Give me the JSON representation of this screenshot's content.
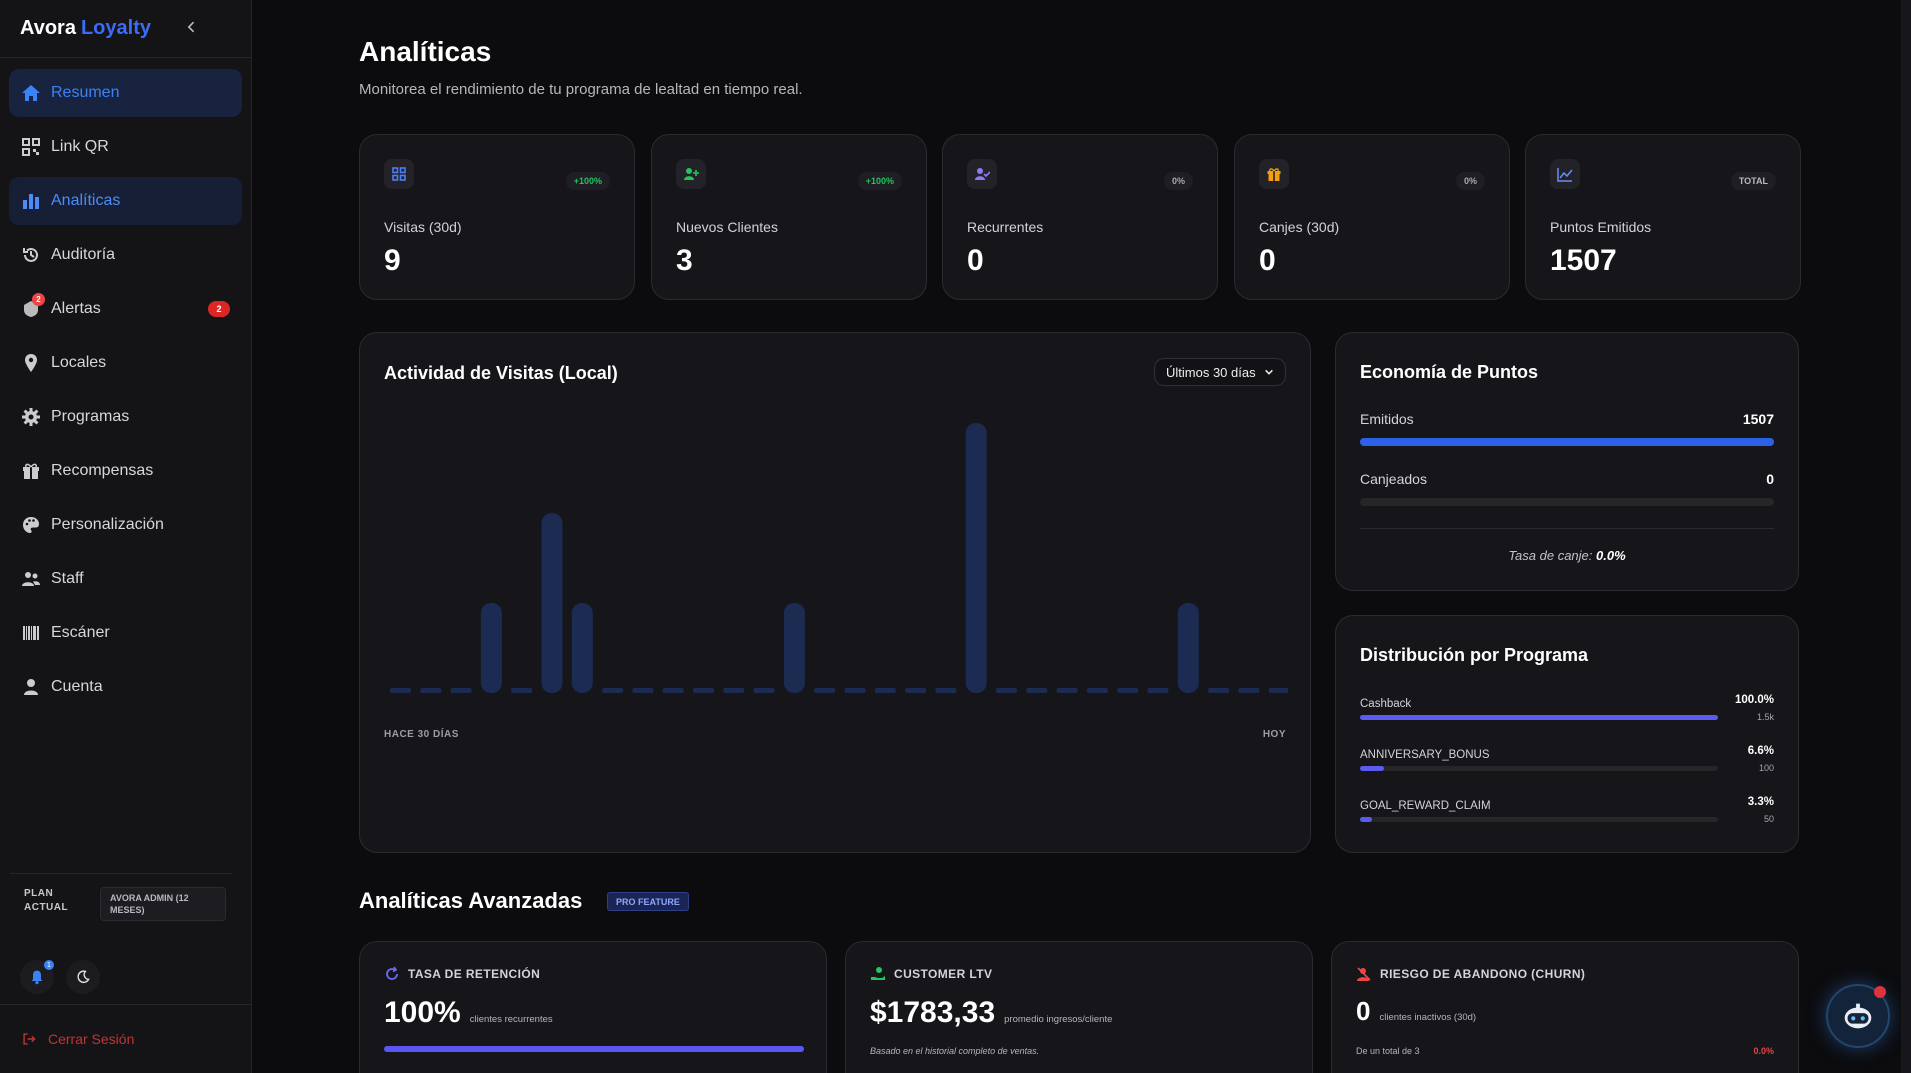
{
  "sidebar": {
    "brand_name": "Avora",
    "brand_accent": "Loyalty",
    "items": [
      {
        "label": "Resumen",
        "icon": "home-icon"
      },
      {
        "label": "Link QR",
        "icon": "qr-icon"
      },
      {
        "label": "Analíticas",
        "icon": "bar-chart-icon"
      },
      {
        "label": "Auditoría",
        "icon": "history-icon"
      },
      {
        "label": "Alertas",
        "icon": "alert-icon",
        "badge": "2",
        "icon_badge": "2"
      },
      {
        "label": "Locales",
        "icon": "location-pin-icon"
      },
      {
        "label": "Programas",
        "icon": "gear-icon"
      },
      {
        "label": "Recompensas",
        "icon": "gift-icon"
      },
      {
        "label": "Personalización",
        "icon": "palette-icon"
      },
      {
        "label": "Staff",
        "icon": "users-icon"
      },
      {
        "label": "Escáner",
        "icon": "barcode-icon"
      },
      {
        "label": "Cuenta",
        "icon": "user-icon"
      }
    ],
    "plan_label": "PLAN ACTUAL",
    "plan_value": "AVORA ADMIN (12 MESES)",
    "notifications_badge": "1",
    "logout_label": "Cerrar Sesión"
  },
  "header": {
    "title": "Analíticas",
    "subtitle": "Monitorea el rendimiento de tu programa de lealtad en tiempo real."
  },
  "stats": [
    {
      "label": "Visitas (30d)",
      "value": "9",
      "chip": "+100%",
      "icon": "grid-icon"
    },
    {
      "label": "Nuevos Clientes",
      "value": "3",
      "chip": "+100%",
      "icon": "user-plus-icon"
    },
    {
      "label": "Recurrentes",
      "value": "0",
      "chip": "0%",
      "icon": "user-check-icon"
    },
    {
      "label": "Canjes (30d)",
      "value": "0",
      "chip": "0%",
      "icon": "gift-icon"
    },
    {
      "label": "Puntos Emitidos",
      "value": "1507",
      "chip": "TOTAL",
      "icon": "trend-icon"
    }
  ],
  "activity": {
    "title": "Actividad de Visitas (Local)",
    "range": "Últimos 30 días",
    "start_label": "HACE 30 DÍAS",
    "end_label": "HOY"
  },
  "chart_data": {
    "type": "bar",
    "title": "Actividad de Visitas (Local)",
    "xlabel": "",
    "ylabel": "",
    "categories": [
      "HACE 30 DÍAS",
      "",
      "",
      "",
      "",
      "",
      "",
      "",
      "",
      "",
      "",
      "",
      "",
      "",
      "",
      "",
      "",
      "",
      "",
      "",
      "",
      "",
      "",
      "",
      "",
      "",
      "",
      "",
      "",
      "HOY"
    ],
    "values": [
      0,
      0,
      0,
      1,
      0,
      2,
      1,
      0,
      0,
      0,
      0,
      0,
      0,
      1,
      0,
      0,
      0,
      0,
      0,
      3,
      0,
      0,
      0,
      0,
      0,
      0,
      1,
      0,
      0,
      0
    ],
    "ylim": [
      0,
      3
    ]
  },
  "economy": {
    "title": "Economía de Puntos",
    "issued_label": "Emitidos",
    "issued_value": "1507",
    "issued_fill": 1.0,
    "redeemed_label": "Canjeados",
    "redeemed_value": "0",
    "redeemed_fill": 0.0,
    "rate_label": "Tasa de canje:",
    "rate_value": "0.0%"
  },
  "distribution": {
    "title": "Distribución por Programa",
    "rows": [
      {
        "name": "Cashback",
        "pct": "100.0%",
        "count": "1.5k",
        "fill": 1.0
      },
      {
        "name": "ANNIVERSARY_BONUS",
        "pct": "6.6%",
        "count": "100",
        "fill": 0.066
      },
      {
        "name": "GOAL_REWARD_CLAIM",
        "pct": "3.3%",
        "count": "50",
        "fill": 0.033
      }
    ]
  },
  "advanced": {
    "title": "Analíticas Avanzadas",
    "badge": "PRO FEATURE",
    "retention": {
      "label": "TASA DE RETENCIÓN",
      "value": "100%",
      "caption": "clientes recurrentes",
      "fill": 1.0
    },
    "ltv": {
      "label": "CUSTOMER LTV",
      "value": "$1783,33",
      "caption": "promedio ingresos/cliente",
      "note": "Basado en el historial completo de ventas."
    },
    "churn": {
      "label": "RIESGO DE ABANDONO (CHURN)",
      "value": "0",
      "caption": "clientes inactivos (30d)",
      "footer": "De un total de 3",
      "pct": "0.0%"
    }
  },
  "colors": {
    "accent": "#3b6cf6",
    "positive": "#22c55e",
    "danger": "#dc2626",
    "bar": "#1b2b52"
  }
}
